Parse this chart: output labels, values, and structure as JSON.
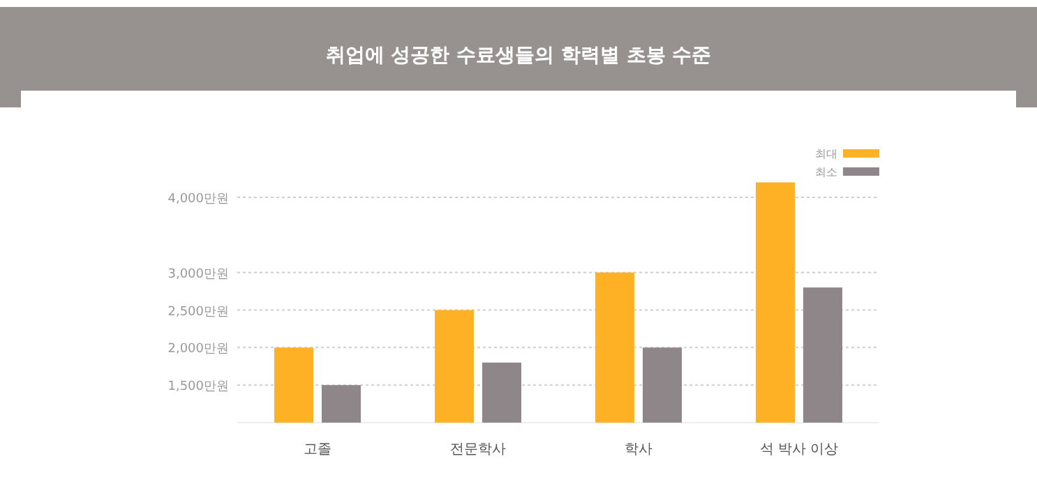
{
  "chart_data": {
    "type": "bar",
    "title": "취업에 성공한 수료생들의 학력별 초봉 수준",
    "categories": [
      "고졸",
      "전문학사",
      "학사",
      "석 박사 이상"
    ],
    "series": [
      {
        "name": "최대",
        "color": "#ffb126",
        "values": [
          2000,
          2500,
          3000,
          4200
        ]
      },
      {
        "name": "최소",
        "color": "#8f8689",
        "values": [
          1500,
          1800,
          2000,
          2800
        ]
      }
    ],
    "ylim": [
      1000,
      4400
    ],
    "yticks": [
      {
        "value": 1500,
        "label": "1,500만원"
      },
      {
        "value": 2000,
        "label": "2,000만원"
      },
      {
        "value": 2500,
        "label": "2,500만원"
      },
      {
        "value": 3000,
        "label": "3,000만원"
      },
      {
        "value": 4000,
        "label": "4,000만원"
      }
    ],
    "grid": "y",
    "legend": "top right"
  }
}
